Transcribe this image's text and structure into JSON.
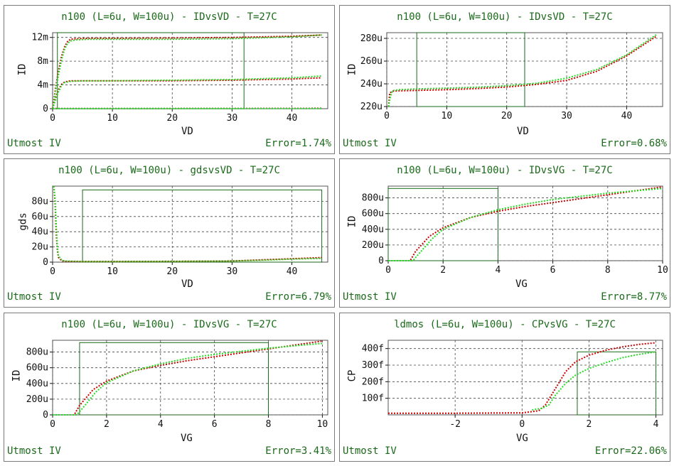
{
  "footer_left": "Utmost IV",
  "colors": {
    "measured": "#cc0000",
    "simulated": "#22dd22",
    "window": "#1a6a1a",
    "title": "#1a6a1a"
  },
  "chart_data": [
    {
      "type": "line",
      "title": "n100 (L=6u, W=100u) - IDvsVD - T=27C",
      "xlabel": "VD",
      "ylabel": "ID",
      "xlim": [
        0,
        46
      ],
      "ylim": [
        0,
        0.0128
      ],
      "xticks": [
        {
          "v": 0,
          "t": "0"
        },
        {
          "v": 10,
          "t": "10"
        },
        {
          "v": 20,
          "t": "20"
        },
        {
          "v": 30,
          "t": "30"
        },
        {
          "v": 40,
          "t": "40"
        }
      ],
      "yticks": [
        {
          "v": 0,
          "t": "0"
        },
        {
          "v": 0.004,
          "t": "4m"
        },
        {
          "v": 0.008,
          "t": "8m"
        },
        {
          "v": 0.012,
          "t": "12m"
        }
      ],
      "window": [
        0.8,
        32,
        0,
        0.0128
      ],
      "error": "Error=1.74%",
      "series": [
        {
          "role": "measured",
          "x": [
            0,
            0.5,
            1,
            1.5,
            2,
            2.5,
            3,
            4,
            6,
            10,
            20,
            30,
            40,
            45
          ],
          "y": [
            0,
            0.0035,
            0.0065,
            0.0088,
            0.0104,
            0.0113,
            0.0117,
            0.0118,
            0.01185,
            0.01185,
            0.0119,
            0.012,
            0.0122,
            0.0124
          ]
        },
        {
          "role": "simulated",
          "x": [
            0,
            0.5,
            1,
            1.5,
            2,
            2.5,
            3,
            4,
            6,
            10,
            20,
            30,
            40,
            45
          ],
          "y": [
            0,
            0.003,
            0.0058,
            0.0082,
            0.01,
            0.011,
            0.0114,
            0.0116,
            0.0117,
            0.0117,
            0.0117,
            0.0118,
            0.0121,
            0.0124
          ]
        },
        {
          "role": "measured",
          "x": [
            0,
            0.5,
            1,
            1.5,
            2,
            3,
            5,
            10,
            20,
            30,
            40,
            45
          ],
          "y": [
            0,
            0.0018,
            0.0032,
            0.0041,
            0.0045,
            0.0047,
            0.0047,
            0.0047,
            0.0047,
            0.0048,
            0.005,
            0.0052
          ]
        },
        {
          "role": "simulated",
          "x": [
            0,
            0.5,
            1,
            1.5,
            2,
            3,
            5,
            10,
            20,
            30,
            40,
            45
          ],
          "y": [
            0,
            0.0015,
            0.0029,
            0.0039,
            0.0044,
            0.0046,
            0.0047,
            0.0047,
            0.0048,
            0.0049,
            0.0052,
            0.0055
          ]
        },
        {
          "role": "measured",
          "x": [
            0,
            10,
            20,
            30,
            40,
            45
          ],
          "y": [
            2e-05,
            3e-05,
            4e-05,
            5e-05,
            6e-05,
            7e-05
          ]
        },
        {
          "role": "simulated",
          "x": [
            0,
            10,
            20,
            30,
            40,
            45
          ],
          "y": [
            1e-05,
            2e-05,
            2e-05,
            3e-05,
            3e-05,
            3e-05
          ]
        }
      ]
    },
    {
      "type": "line",
      "title": "n100 (L=6u, W=100u) - IDvsVD - T=27C",
      "xlabel": "VD",
      "ylabel": "ID",
      "xlim": [
        0,
        46
      ],
      "ylim": [
        0.00022,
        0.000285
      ],
      "xticks": [
        {
          "v": 0,
          "t": "0"
        },
        {
          "v": 10,
          "t": "10"
        },
        {
          "v": 20,
          "t": "20"
        },
        {
          "v": 30,
          "t": "30"
        },
        {
          "v": 40,
          "t": "40"
        }
      ],
      "yticks": [
        {
          "v": 0.00022,
          "t": "220u"
        },
        {
          "v": 0.00024,
          "t": "240u"
        },
        {
          "v": 0.00026,
          "t": "260u"
        },
        {
          "v": 0.00028,
          "t": "280u"
        }
      ],
      "window": [
        5,
        23,
        0.00022,
        0.000285
      ],
      "error": "Error=0.68%",
      "series": [
        {
          "role": "measured",
          "x": [
            0.3,
            0.5,
            1,
            2,
            5,
            10,
            15,
            20,
            25,
            30,
            35,
            40,
            45
          ],
          "y": [
            0.00022,
            0.000232,
            0.0002335,
            0.0002338,
            0.0002342,
            0.0002348,
            0.0002358,
            0.0002372,
            0.0002395,
            0.000243,
            0.000251,
            0.0002645,
            0.000282
          ]
        },
        {
          "role": "simulated",
          "x": [
            0.3,
            0.5,
            0.8,
            1,
            2,
            5,
            10,
            15,
            20,
            25,
            30,
            35,
            40,
            45
          ],
          "y": [
            0.00022,
            0.000226,
            0.000232,
            0.000234,
            0.0002348,
            0.0002355,
            0.0002362,
            0.000237,
            0.0002383,
            0.0002405,
            0.000245,
            0.0002525,
            0.0002655,
            0.0002835
          ]
        }
      ]
    },
    {
      "type": "line",
      "title": "n100 (L=6u, W=100u) - gdsvsVD - T=27C",
      "xlabel": "VD",
      "ylabel": "gds",
      "xlim": [
        0,
        46
      ],
      "ylim": [
        0,
        0.0001
      ],
      "xticks": [
        {
          "v": 0,
          "t": "0"
        },
        {
          "v": 10,
          "t": "10"
        },
        {
          "v": 20,
          "t": "20"
        },
        {
          "v": 30,
          "t": "30"
        },
        {
          "v": 40,
          "t": "40"
        }
      ],
      "yticks": [
        {
          "v": 0,
          "t": "0"
        },
        {
          "v": 2e-05,
          "t": "20u"
        },
        {
          "v": 4e-05,
          "t": "40u"
        },
        {
          "v": 6e-05,
          "t": "60u"
        },
        {
          "v": 8e-05,
          "t": "80u"
        }
      ],
      "window": [
        5,
        45,
        0,
        9.5e-05
      ],
      "error": "Error=6.79%",
      "series": [
        {
          "role": "measured",
          "x": [
            0.2,
            0.4,
            0.6,
            0.8,
            1,
            1.5,
            2,
            5,
            10,
            20,
            30,
            35,
            40,
            45
          ],
          "y": [
            0.0001,
            8e-05,
            4e-05,
            1.5e-05,
            6e-06,
            2e-06,
            1e-06,
            8e-07,
            8e-07,
            1e-06,
            1.5e-06,
            3e-06,
            4.5e-06,
            6e-06
          ]
        },
        {
          "role": "simulated",
          "x": [
            0.2,
            0.4,
            0.6,
            0.8,
            1,
            1.5,
            2,
            5,
            10,
            20,
            30,
            35,
            40,
            45
          ],
          "y": [
            0.0001,
            8.5e-05,
            5e-05,
            2e-05,
            8e-06,
            3e-06,
            1.5e-06,
            8e-07,
            8e-07,
            1e-06,
            1.5e-06,
            2.5e-06,
            4e-06,
            5e-06
          ]
        }
      ]
    },
    {
      "type": "line",
      "title": "n100 (L=6u, W=100u) - IDvsVG - T=27C",
      "xlabel": "VG",
      "ylabel": "ID",
      "xlim": [
        0,
        10
      ],
      "ylim": [
        0,
        0.00095
      ],
      "xticks": [
        {
          "v": 0,
          "t": "0"
        },
        {
          "v": 2,
          "t": "2"
        },
        {
          "v": 4,
          "t": "4"
        },
        {
          "v": 6,
          "t": "6"
        },
        {
          "v": 8,
          "t": "8"
        },
        {
          "v": 10,
          "t": "10"
        }
      ],
      "yticks": [
        {
          "v": 0,
          "t": "0"
        },
        {
          "v": 0.0002,
          "t": "200u"
        },
        {
          "v": 0.0004,
          "t": "400u"
        },
        {
          "v": 0.0006,
          "t": "600u"
        },
        {
          "v": 0.0008,
          "t": "800u"
        }
      ],
      "window": [
        0,
        4,
        0,
        0.00092
      ],
      "error": "Error=8.77%",
      "series": [
        {
          "role": "measured",
          "x": [
            0,
            0.8,
            1,
            1.5,
            2,
            3,
            4,
            5,
            6,
            7,
            8,
            9,
            10
          ],
          "y": [
            0,
            0,
            0.00012,
            0.00031,
            0.00042,
            0.00055,
            0.00063,
            0.00069,
            0.00074,
            0.00079,
            0.00084,
            0.00089,
            0.00094
          ]
        },
        {
          "role": "simulated",
          "x": [
            0,
            0.9,
            1.2,
            1.6,
            2,
            3,
            4,
            5,
            6,
            7,
            8,
            9,
            10
          ],
          "y": [
            0,
            0,
            0.00012,
            0.00028,
            0.0004,
            0.00055,
            0.00065,
            0.00072,
            0.00078,
            0.00082,
            0.00086,
            0.00089,
            0.00092
          ]
        }
      ]
    },
    {
      "type": "line",
      "title": "n100 (L=6u, W=100u) - IDvsVG - T=27C",
      "xlabel": "VG",
      "ylabel": "ID",
      "xlim": [
        0,
        10.2
      ],
      "ylim": [
        0,
        0.00095
      ],
      "xticks": [
        {
          "v": 0,
          "t": "0"
        },
        {
          "v": 2,
          "t": "2"
        },
        {
          "v": 4,
          "t": "4"
        },
        {
          "v": 6,
          "t": "6"
        },
        {
          "v": 8,
          "t": "8"
        },
        {
          "v": 10,
          "t": "10"
        }
      ],
      "yticks": [
        {
          "v": 0,
          "t": "0"
        },
        {
          "v": 0.0002,
          "t": "200u"
        },
        {
          "v": 0.0004,
          "t": "400u"
        },
        {
          "v": 0.0006,
          "t": "600u"
        },
        {
          "v": 0.0008,
          "t": "800u"
        }
      ],
      "window": [
        1,
        8,
        0,
        0.00092
      ],
      "error": "Error=3.41%",
      "series": [
        {
          "role": "measured",
          "x": [
            0,
            0.8,
            1,
            1.5,
            2,
            3,
            4,
            5,
            6,
            7,
            8,
            9,
            10
          ],
          "y": [
            0,
            0,
            0.00012,
            0.00032,
            0.00043,
            0.00056,
            0.00063,
            0.00069,
            0.00074,
            0.00079,
            0.00084,
            0.00089,
            0.00094
          ]
        },
        {
          "role": "simulated",
          "x": [
            0,
            0.9,
            1.2,
            1.6,
            2,
            3,
            4,
            5,
            6,
            7,
            8,
            9,
            10
          ],
          "y": [
            0,
            0,
            0.00012,
            0.00029,
            0.00041,
            0.00056,
            0.00065,
            0.00072,
            0.00077,
            0.00081,
            0.00085,
            0.00088,
            0.00091
          ]
        }
      ]
    },
    {
      "type": "line",
      "title": "ldmos (L=6u, W=100u) - CPvsVG - T=27C",
      "xlabel": "VG",
      "ylabel": "CP",
      "xlim": [
        -4,
        4.2
      ],
      "ylim": [
        0,
        4.5e-13
      ],
      "xticks": [
        {
          "v": -2,
          "t": "-2"
        },
        {
          "v": 0,
          "t": "0"
        },
        {
          "v": 2,
          "t": "2"
        },
        {
          "v": 4,
          "t": "4"
        }
      ],
      "yticks": [
        {
          "v": 1e-13,
          "t": "100f"
        },
        {
          "v": 2e-13,
          "t": "200f"
        },
        {
          "v": 3e-13,
          "t": "300f"
        },
        {
          "v": 4e-13,
          "t": "400f"
        }
      ],
      "window": [
        1.65,
        4,
        0,
        3.8e-13
      ],
      "error": "Error=22.06%",
      "series": [
        {
          "role": "measured",
          "x": [
            -4,
            -2,
            0,
            0.5,
            0.7,
            1,
            1.3,
            1.6,
            2,
            2.5,
            3,
            3.5,
            4
          ],
          "y": [
            1e-14,
            1e-14,
            1.2e-14,
            2.5e-14,
            6e-14,
            1.6e-13,
            2.6e-13,
            3.2e-13,
            3.6e-13,
            3.9e-13,
            4.1e-13,
            4.25e-13,
            4.35e-13
          ]
        },
        {
          "role": "simulated",
          "x": [
            0.3,
            0.6,
            0.8,
            1,
            1.3,
            1.6,
            2,
            2.5,
            3,
            3.5,
            4
          ],
          "y": [
            3e-14,
            4e-14,
            6e-14,
            1.2e-13,
            1.9e-13,
            2.4e-13,
            2.8e-13,
            3.15e-13,
            3.45e-13,
            3.65e-13,
            3.8e-13
          ]
        }
      ]
    }
  ]
}
